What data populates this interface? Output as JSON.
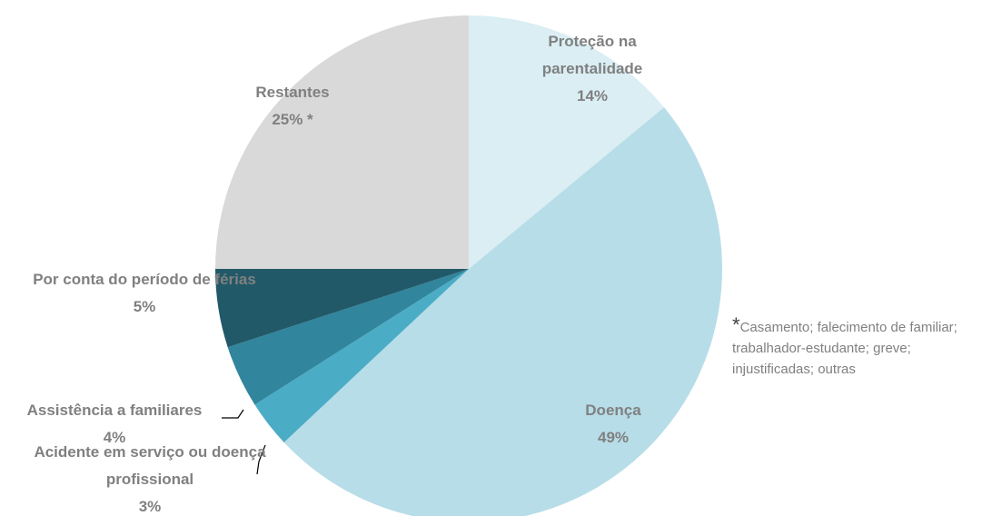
{
  "chart_data": {
    "type": "pie",
    "categories": [
      "Proteção na parentalidade",
      "Doença",
      "Acidente em serviço ou doença profissional",
      "Assistência a familiares",
      "Por conta do período de férias",
      "Restantes"
    ],
    "values": [
      14,
      49,
      3,
      4,
      5,
      25
    ],
    "value_labels": [
      "14%",
      "49%",
      "3%",
      "4%",
      "5%",
      "25% *"
    ],
    "colors": [
      "#daeef3",
      "#b7dde8",
      "#4bacc6",
      "#31859c",
      "#215968",
      "#d9d9d9"
    ],
    "footnote": {
      "marker": "*",
      "text": "Casamento; falecimento de familiar; trabalhador-estudante; greve; injustificadas; outras"
    }
  }
}
